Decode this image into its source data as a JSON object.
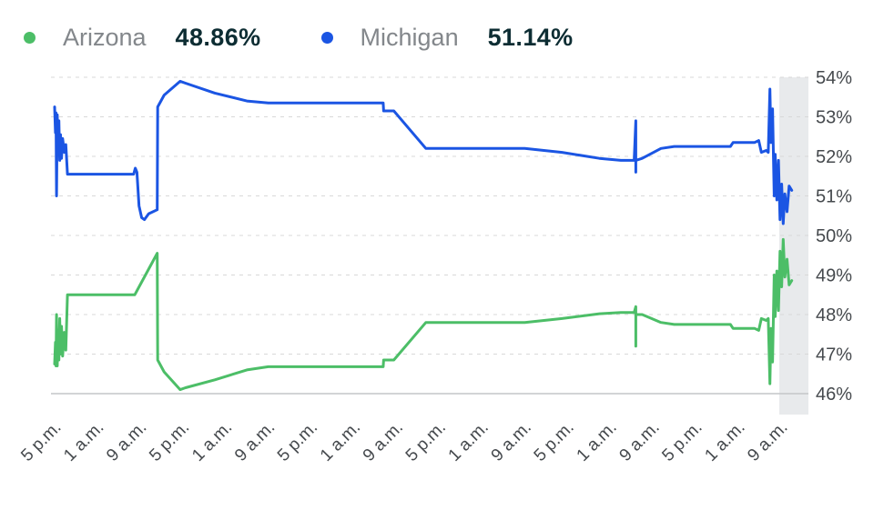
{
  "legend": [
    {
      "name": "Arizona",
      "value": "48.86%",
      "color": "#4cbe67"
    },
    {
      "name": "Michigan",
      "value": "51.14%",
      "color": "#1b55e3"
    }
  ],
  "chart_data": {
    "type": "line",
    "x_unit": "hours",
    "legend_position": "top-left",
    "grid": "dashed-horizontal",
    "ylim": [
      46,
      54
    ],
    "y_tick_values": [
      54,
      53,
      52,
      51,
      50,
      49,
      48,
      47,
      46
    ],
    "y_tick_labels": [
      "54%",
      "53%",
      "52%",
      "51%",
      "50%",
      "49%",
      "48%",
      "47%",
      "46%"
    ],
    "x_tick_hours": [
      0,
      8,
      16,
      24,
      32,
      40,
      48,
      56,
      64,
      72,
      80,
      88,
      96,
      104,
      112,
      120,
      128,
      136
    ],
    "x_tick_labels": [
      "5 p.m.",
      "1 a.m.",
      "9 a.m.",
      "5 p.m.",
      "1 a.m.",
      "9 a.m.",
      "5 p.m.",
      "1 a.m.",
      "9 a.m.",
      "5 p.m.",
      "1 a.m.",
      "9 a.m.",
      "5 p.m.",
      "1 a.m.",
      "9 a.m.",
      "5 p.m.",
      "1 a.m.",
      "9 a.m."
    ],
    "colors": {
      "grid": "#d8d8d8",
      "baseline": "#c4c6c8",
      "axis_text": "#45494d",
      "future_band": "#e8eaec"
    },
    "series": [
      {
        "name": "Michigan",
        "color": "#1b55e3",
        "final_value": 51.14,
        "points": [
          [
            0,
            53.25
          ],
          [
            0.15,
            52.6
          ],
          [
            0.25,
            53.1
          ],
          [
            0.35,
            51.0
          ],
          [
            0.5,
            53.05
          ],
          [
            0.65,
            52.3
          ],
          [
            0.8,
            52.9
          ],
          [
            0.95,
            51.9
          ],
          [
            1.1,
            52.55
          ],
          [
            1.3,
            51.95
          ],
          [
            1.5,
            52.45
          ],
          [
            1.8,
            52.1
          ],
          [
            2.1,
            52.3
          ],
          [
            2.4,
            51.55
          ],
          [
            14.8,
            51.55
          ],
          [
            15.1,
            51.7
          ],
          [
            15.4,
            51.6
          ],
          [
            15.8,
            50.75
          ],
          [
            16.3,
            50.45
          ],
          [
            16.8,
            50.4
          ],
          [
            17.6,
            50.55
          ],
          [
            19.2,
            50.65
          ],
          [
            19.3,
            53.25
          ],
          [
            20.5,
            53.55
          ],
          [
            23.5,
            53.9
          ],
          [
            24.5,
            53.85
          ],
          [
            30,
            53.6
          ],
          [
            36,
            53.4
          ],
          [
            40,
            53.35
          ],
          [
            61.5,
            53.35
          ],
          [
            61.6,
            53.15
          ],
          [
            63.5,
            53.15
          ],
          [
            69.5,
            52.2
          ],
          [
            88,
            52.2
          ],
          [
            95,
            52.1
          ],
          [
            102,
            51.95
          ],
          [
            106,
            51.9
          ],
          [
            108.5,
            51.9
          ],
          [
            108.8,
            52.9
          ],
          [
            108.8,
            51.6
          ],
          [
            108.8,
            51.9
          ],
          [
            110,
            51.95
          ],
          [
            113.5,
            52.2
          ],
          [
            116,
            52.25
          ],
          [
            126.5,
            52.25
          ],
          [
            127,
            52.35
          ],
          [
            131,
            52.35
          ],
          [
            131.8,
            52.4
          ],
          [
            132.3,
            52.1
          ],
          [
            133.2,
            52.15
          ],
          [
            133.6,
            52.1
          ],
          [
            133.9,
            53.7
          ],
          [
            134.1,
            52.35
          ],
          [
            134.4,
            53.2
          ],
          [
            134.7,
            51.0
          ],
          [
            134.9,
            52.05
          ],
          [
            135.2,
            50.9
          ],
          [
            135.5,
            51.9
          ],
          [
            135.8,
            50.4
          ],
          [
            136.1,
            51.3
          ],
          [
            136.4,
            50.3
          ],
          [
            136.7,
            51.05
          ],
          [
            137.1,
            50.6
          ],
          [
            137.5,
            51.25
          ],
          [
            138,
            51.14
          ]
        ]
      },
      {
        "name": "Arizona",
        "color": "#4cbe67",
        "final_value": 48.86,
        "points": [
          [
            0,
            46.75
          ],
          [
            0.15,
            47.3
          ],
          [
            0.25,
            46.7
          ],
          [
            0.35,
            48.0
          ],
          [
            0.5,
            46.7
          ],
          [
            0.65,
            47.6
          ],
          [
            0.8,
            46.85
          ],
          [
            0.95,
            47.9
          ],
          [
            1.1,
            47.0
          ],
          [
            1.3,
            47.7
          ],
          [
            1.5,
            46.95
          ],
          [
            1.8,
            47.55
          ],
          [
            2.1,
            47.1
          ],
          [
            2.4,
            48.5
          ],
          [
            15,
            48.5
          ],
          [
            15.4,
            48.6
          ],
          [
            19.2,
            49.55
          ],
          [
            19.3,
            46.85
          ],
          [
            20.5,
            46.55
          ],
          [
            23.5,
            46.1
          ],
          [
            24.5,
            46.15
          ],
          [
            30,
            46.35
          ],
          [
            36,
            46.6
          ],
          [
            40,
            46.68
          ],
          [
            61.5,
            46.68
          ],
          [
            61.6,
            46.85
          ],
          [
            63.5,
            46.85
          ],
          [
            69.5,
            47.8
          ],
          [
            88,
            47.8
          ],
          [
            95,
            47.9
          ],
          [
            102,
            48.02
          ],
          [
            106,
            48.05
          ],
          [
            108.5,
            48.05
          ],
          [
            108.8,
            48.2
          ],
          [
            108.8,
            47.2
          ],
          [
            108.8,
            48.0
          ],
          [
            110,
            48.0
          ],
          [
            113.5,
            47.8
          ],
          [
            116,
            47.75
          ],
          [
            126.5,
            47.75
          ],
          [
            127,
            47.65
          ],
          [
            131,
            47.65
          ],
          [
            131.8,
            47.6
          ],
          [
            132.3,
            47.9
          ],
          [
            133.2,
            47.85
          ],
          [
            133.6,
            47.9
          ],
          [
            133.9,
            46.25
          ],
          [
            134.1,
            47.65
          ],
          [
            134.4,
            46.8
          ],
          [
            134.7,
            49.0
          ],
          [
            134.9,
            47.95
          ],
          [
            135.2,
            49.1
          ],
          [
            135.5,
            48.1
          ],
          [
            135.8,
            49.6
          ],
          [
            136.1,
            48.7
          ],
          [
            136.4,
            49.9
          ],
          [
            136.7,
            48.95
          ],
          [
            137.1,
            49.4
          ],
          [
            137.5,
            48.75
          ],
          [
            138,
            48.86
          ]
        ]
      }
    ]
  }
}
